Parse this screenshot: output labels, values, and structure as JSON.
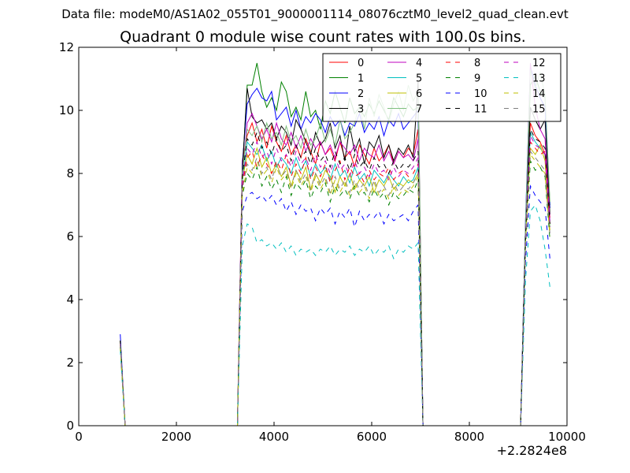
{
  "figure": {
    "suptitle": "Data file: modeM0/AS1A02_055T01_9000001114_08076cztM0_level2_quad_clean.evt",
    "x_offset_label": "+2.2824e8"
  },
  "chart_data": {
    "type": "line",
    "title": "Quadrant 0 module wise count rates with 100.0s bins.",
    "xlabel": "",
    "ylabel": "",
    "xlim": [
      0,
      10000
    ],
    "ylim": [
      0,
      12
    ],
    "x_ticks": [
      0,
      2000,
      4000,
      6000,
      8000,
      10000
    ],
    "y_ticks": [
      0,
      2,
      4,
      6,
      8,
      10,
      12
    ],
    "legend_position": "top-right",
    "legend_columns": 4,
    "x": [
      850,
      950,
      3250,
      3350,
      3450,
      3550,
      3650,
      3750,
      3850,
      3950,
      4050,
      4150,
      4250,
      4350,
      4450,
      4550,
      4650,
      4750,
      4850,
      4950,
      5050,
      5150,
      5250,
      5350,
      5450,
      5550,
      5650,
      5750,
      5850,
      5950,
      6050,
      6150,
      6250,
      6350,
      6450,
      6550,
      6650,
      6750,
      6850,
      6950,
      7050,
      7150,
      9050,
      9150,
      9250,
      9350,
      9450,
      9550,
      9650
    ],
    "series": [
      {
        "name": "0",
        "color": "#ff0000",
        "style": "solid",
        "values": [
          2.7,
          0,
          0,
          8.4,
          9.2,
          9.6,
          9.0,
          9.4,
          8.8,
          9.5,
          9.0,
          8.7,
          9.2,
          8.6,
          8.9,
          8.5,
          9.1,
          8.7,
          8.3,
          9.0,
          8.6,
          8.8,
          8.4,
          9.0,
          8.5,
          8.7,
          8.2,
          8.9,
          8.6,
          8.3,
          8.8,
          8.4,
          8.6,
          8.9,
          8.3,
          8.7,
          8.5,
          8.8,
          8.6,
          9.4,
          0,
          0,
          0,
          6.0,
          9.6,
          9.2,
          9.0,
          8.6,
          6.6
        ]
      },
      {
        "name": "1",
        "color": "#008000",
        "style": "solid",
        "values": [
          2.6,
          0,
          0,
          8.0,
          10.8,
          10.8,
          11.5,
          10.6,
          10.1,
          10.4,
          10.0,
          10.9,
          10.6,
          9.8,
          10.1,
          9.7,
          10.6,
          9.8,
          10.0,
          9.4,
          10.3,
          9.9,
          10.6,
          10.1,
          9.6,
          10.4,
          9.9,
          10.1,
          9.8,
          10.2,
          9.9,
          10.3,
          10.0,
          9.7,
          10.4,
          10.1,
          9.8,
          10.2,
          10.0,
          10.1,
          0,
          0,
          0,
          6.3,
          10.8,
          11.1,
          10.6,
          10.4,
          7.0
        ]
      },
      {
        "name": "2",
        "color": "#0000ff",
        "style": "solid",
        "values": [
          2.9,
          0,
          0,
          8.3,
          10.2,
          10.5,
          10.7,
          10.4,
          10.3,
          10.6,
          9.7,
          9.9,
          10.1,
          9.5,
          10.0,
          9.4,
          9.8,
          9.6,
          9.9,
          9.7,
          9.3,
          9.8,
          9.5,
          9.7,
          9.2,
          9.6,
          9.5,
          9.9,
          9.3,
          9.6,
          9.4,
          9.8,
          9.2,
          9.7,
          9.5,
          9.9,
          9.4,
          9.6,
          9.8,
          10.0,
          0,
          0,
          0,
          6.5,
          11.4,
          10.8,
          10.4,
          10.1,
          6.9
        ]
      },
      {
        "name": "3",
        "color": "#000000",
        "style": "solid",
        "values": [
          2.7,
          0,
          0,
          8.1,
          10.7,
          9.8,
          9.6,
          9.7,
          9.4,
          9.6,
          9.1,
          9.5,
          9.3,
          8.9,
          9.7,
          9.4,
          9.0,
          8.6,
          9.3,
          8.9,
          9.1,
          9.6,
          8.8,
          9.2,
          8.4,
          9.5,
          8.7,
          9.1,
          8.3,
          9.0,
          8.8,
          9.2,
          8.5,
          8.9,
          8.4,
          8.8,
          8.6,
          8.9,
          8.5,
          10.9,
          0,
          0,
          0,
          6.2,
          10.1,
          9.7,
          9.4,
          9.7,
          6.7
        ]
      },
      {
        "name": "4",
        "color": "#bf00bf",
        "style": "solid",
        "values": [
          2.6,
          0,
          0,
          7.9,
          9.6,
          9.9,
          9.5,
          9.1,
          9.4,
          9.0,
          9.6,
          9.1,
          8.9,
          9.3,
          8.8,
          9.2,
          8.7,
          9.1,
          8.8,
          9.0,
          8.6,
          8.9,
          8.5,
          9.0,
          8.8,
          8.6,
          8.9,
          8.4,
          8.8,
          8.6,
          8.5,
          8.9,
          8.4,
          8.7,
          8.3,
          8.7,
          8.5,
          8.6,
          8.4,
          9.1,
          0,
          0,
          0,
          6.1,
          11.5,
          10.1,
          9.4,
          9.1,
          6.5
        ]
      },
      {
        "name": "5",
        "color": "#00bfbf",
        "style": "solid",
        "values": [
          2.5,
          0,
          0,
          7.7,
          9.0,
          8.8,
          8.6,
          8.9,
          8.4,
          8.7,
          8.2,
          8.5,
          8.3,
          8.0,
          8.5,
          8.1,
          8.4,
          7.9,
          8.3,
          8.0,
          8.2,
          7.8,
          8.3,
          7.9,
          8.1,
          7.7,
          8.2,
          7.8,
          8.0,
          7.6,
          8.1,
          7.9,
          7.7,
          8.0,
          7.8,
          7.6,
          7.9,
          7.7,
          7.8,
          8.2,
          0,
          0,
          0,
          5.9,
          9.3,
          9.0,
          8.8,
          8.6,
          6.3
        ]
      },
      {
        "name": "6",
        "color": "#bfbf00",
        "style": "solid",
        "values": [
          2.6,
          0,
          0,
          7.8,
          8.6,
          8.3,
          8.8,
          8.2,
          8.5,
          8.0,
          8.3,
          7.9,
          8.2,
          7.6,
          8.1,
          7.8,
          8.2,
          7.5,
          8.0,
          7.7,
          8.1,
          7.9,
          7.4,
          7.9,
          7.6,
          8.0,
          7.5,
          7.8,
          7.6,
          7.9,
          7.4,
          7.8,
          7.6,
          7.9,
          7.5,
          7.7,
          7.6,
          7.8,
          7.7,
          8.0,
          0,
          0,
          0,
          5.8,
          8.8,
          8.6,
          8.9,
          8.4,
          6.2
        ]
      },
      {
        "name": "7",
        "color": "#7fbf7f",
        "style": "solid",
        "values": [
          2.7,
          0,
          0,
          8.0,
          9.4,
          9.2,
          9.5,
          9.0,
          9.6,
          9.1,
          9.3,
          8.9,
          9.5,
          9.0,
          9.2,
          8.8,
          9.4,
          8.9,
          9.1,
          9.6,
          9.0,
          9.4,
          8.9,
          9.7,
          9.1,
          9.3,
          9.6,
          10.2,
          9.4,
          10.4,
          9.8,
          10.5,
          10.1,
          9.6,
          10.2,
          10.6,
          10.0,
          10.8,
          10.3,
          10.6,
          0,
          0,
          0,
          6.4,
          11.3,
          10.7,
          11.2,
          10.5,
          7.1
        ]
      },
      {
        "name": "8",
        "color": "#ff0000",
        "style": "dashed",
        "values": [
          2.6,
          0,
          0,
          7.6,
          8.5,
          8.7,
          8.2,
          8.6,
          8.3,
          8.0,
          8.4,
          8.1,
          8.6,
          7.9,
          8.3,
          8.0,
          8.5,
          7.8,
          8.2,
          7.9,
          8.3,
          7.7,
          8.1,
          8.4,
          7.8,
          8.2,
          7.9,
          8.0,
          7.7,
          8.1,
          7.8,
          8.0,
          7.9,
          8.2,
          7.8,
          8.0,
          8.1,
          7.9,
          8.0,
          8.3,
          0,
          0,
          0,
          5.8,
          9.0,
          8.8,
          8.6,
          8.7,
          6.4
        ]
      },
      {
        "name": "9",
        "color": "#008000",
        "style": "dashed",
        "values": [
          2.5,
          0,
          0,
          7.3,
          8.0,
          7.8,
          8.2,
          7.6,
          7.9,
          7.5,
          7.8,
          7.4,
          7.9,
          7.3,
          7.7,
          7.5,
          7.8,
          7.2,
          7.6,
          7.4,
          7.7,
          7.1,
          7.6,
          7.3,
          7.5,
          7.2,
          7.6,
          7.3,
          7.4,
          7.1,
          7.5,
          7.2,
          7.4,
          7.0,
          7.4,
          7.2,
          7.3,
          7.5,
          7.4,
          7.8,
          0,
          0,
          0,
          5.6,
          8.4,
          8.1,
          8.2,
          7.9,
          5.9
        ]
      },
      {
        "name": "10",
        "color": "#0000ff",
        "style": "dashed",
        "values": [
          2.5,
          0,
          0,
          6.8,
          7.3,
          7.4,
          7.2,
          7.3,
          7.1,
          7.3,
          7.0,
          7.2,
          6.8,
          7.1,
          6.7,
          7.0,
          6.8,
          6.9,
          6.5,
          6.9,
          6.7,
          6.9,
          6.4,
          6.8,
          6.6,
          6.9,
          6.3,
          6.8,
          6.5,
          6.7,
          6.6,
          6.8,
          6.4,
          6.7,
          6.5,
          6.6,
          6.7,
          6.5,
          6.8,
          7.0,
          0,
          0,
          0,
          5.2,
          7.6,
          7.3,
          7.1,
          6.9,
          5.3
        ]
      },
      {
        "name": "11",
        "color": "#000000",
        "style": "dashed",
        "values": [
          2.7,
          0,
          0,
          7.9,
          9.1,
          8.9,
          9.3,
          8.8,
          9.0,
          8.6,
          9.1,
          8.7,
          8.9,
          8.4,
          8.9,
          8.5,
          8.7,
          8.3,
          8.8,
          8.4,
          8.6,
          8.2,
          8.7,
          8.3,
          8.5,
          8.1,
          8.6,
          8.2,
          8.4,
          8.1,
          8.5,
          8.2,
          8.3,
          8.0,
          8.4,
          8.1,
          8.3,
          8.2,
          8.4,
          8.7,
          0,
          0,
          0,
          6.0,
          9.4,
          9.1,
          9.0,
          8.8,
          6.4
        ]
      },
      {
        "name": "12",
        "color": "#bf00bf",
        "style": "dashed",
        "values": [
          2.6,
          0,
          0,
          7.7,
          8.8,
          8.6,
          9.0,
          8.5,
          8.7,
          8.3,
          8.8,
          8.4,
          8.6,
          8.2,
          8.7,
          8.3,
          8.5,
          8.1,
          8.6,
          8.2,
          8.4,
          8.0,
          8.5,
          8.1,
          8.3,
          7.9,
          8.4,
          8.0,
          8.2,
          7.9,
          8.3,
          8.0,
          8.1,
          7.8,
          8.2,
          7.9,
          8.1,
          8.0,
          8.2,
          8.5,
          0,
          0,
          0,
          5.9,
          9.2,
          8.9,
          8.8,
          8.6,
          6.3
        ]
      },
      {
        "name": "13",
        "color": "#00bfbf",
        "style": "dashed",
        "values": [
          2.4,
          0,
          0,
          5.7,
          6.4,
          6.3,
          5.8,
          5.9,
          5.7,
          5.8,
          5.6,
          5.8,
          5.5,
          5.7,
          5.4,
          5.6,
          5.5,
          5.6,
          5.4,
          5.6,
          5.5,
          5.7,
          5.4,
          5.6,
          5.5,
          5.7,
          5.4,
          5.6,
          5.5,
          5.7,
          5.4,
          5.6,
          5.5,
          5.7,
          5.3,
          5.6,
          5.5,
          5.7,
          5.6,
          5.8,
          0,
          0,
          0,
          4.6,
          6.8,
          7.0,
          6.5,
          5.6,
          4.4
        ]
      },
      {
        "name": "14",
        "color": "#bfbf00",
        "style": "dashed",
        "values": [
          2.5,
          0,
          0,
          7.4,
          8.2,
          8.0,
          8.4,
          7.9,
          8.1,
          7.7,
          8.2,
          7.8,
          8.0,
          7.5,
          8.0,
          7.6,
          7.9,
          7.4,
          7.9,
          7.5,
          7.8,
          7.3,
          7.8,
          7.4,
          7.7,
          7.3,
          7.7,
          7.4,
          7.6,
          7.2,
          7.7,
          7.3,
          7.5,
          7.2,
          7.6,
          7.3,
          7.5,
          7.4,
          7.6,
          7.9,
          0,
          0,
          0,
          5.7,
          8.6,
          8.4,
          8.2,
          8.0,
          6.0
        ]
      },
      {
        "name": "15",
        "color": "#7f7f7f",
        "style": "dashed",
        "values": [
          2.6,
          0,
          0,
          7.5,
          8.3,
          8.1,
          8.5,
          8.0,
          8.2,
          7.8,
          8.3,
          7.9,
          8.1,
          7.6,
          8.1,
          7.7,
          8.0,
          7.5,
          8.0,
          7.6,
          7.9,
          7.4,
          7.9,
          7.5,
          7.8,
          7.4,
          7.8,
          7.5,
          7.7,
          7.3,
          7.8,
          7.4,
          7.6,
          7.3,
          7.7,
          7.4,
          7.6,
          7.5,
          7.7,
          8.0,
          0,
          0,
          0,
          5.7,
          8.7,
          8.5,
          8.3,
          8.1,
          6.1
        ]
      }
    ]
  }
}
